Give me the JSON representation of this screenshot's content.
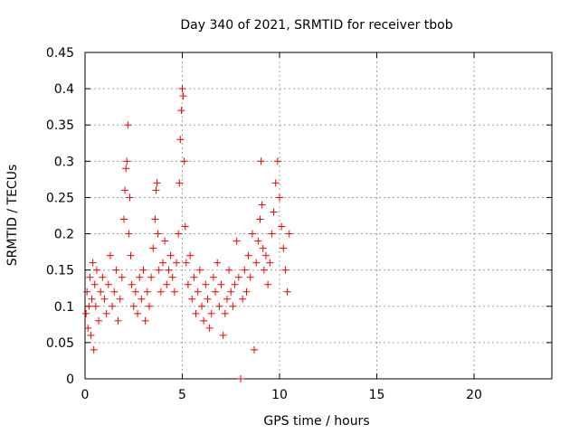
{
  "chart_data": {
    "type": "scatter",
    "title": "Day 340 of 2021, SRMTID for receiver tbob",
    "xlabel": "GPS time / hours",
    "ylabel": "SRMTID / TECUs",
    "xlim": [
      0,
      24
    ],
    "ylim": [
      0,
      0.45
    ],
    "xticks": [
      0,
      5,
      10,
      15,
      20
    ],
    "xtick_labels": [
      "0",
      "5",
      "10",
      "15",
      "20"
    ],
    "yticks": [
      0,
      0.05,
      0.1,
      0.15,
      0.2,
      0.25,
      0.3,
      0.35,
      0.4,
      0.45
    ],
    "ytick_labels": [
      "0",
      "0.05",
      "0.1",
      "0.15",
      "0.2",
      "0.25",
      "0.3",
      "0.35",
      "0.4",
      "0.45"
    ],
    "grid": true,
    "marker": "+",
    "color": "#ee0000",
    "series": [
      {
        "name": "SRMTID",
        "x": [
          0.05,
          0.1,
          0.15,
          0.2,
          0.25,
          0.3,
          0.35,
          0.4,
          0.45,
          0.5,
          0.55,
          0.6,
          0.7,
          0.8,
          0.9,
          1.0,
          1.1,
          1.2,
          1.3,
          1.4,
          1.5,
          1.6,
          1.7,
          1.8,
          1.9,
          2.0,
          2.05,
          2.1,
          2.15,
          2.2,
          2.25,
          2.3,
          2.35,
          2.4,
          2.5,
          2.6,
          2.7,
          2.8,
          2.9,
          3.0,
          3.1,
          3.2,
          3.3,
          3.4,
          3.5,
          3.6,
          3.65,
          3.7,
          3.75,
          3.8,
          3.9,
          4.0,
          4.1,
          4.2,
          4.3,
          4.4,
          4.5,
          4.6,
          4.7,
          4.8,
          4.85,
          4.9,
          4.95,
          5.0,
          5.05,
          5.1,
          5.15,
          5.2,
          5.3,
          5.4,
          5.5,
          5.6,
          5.7,
          5.8,
          5.9,
          6.0,
          6.1,
          6.2,
          6.3,
          6.4,
          6.5,
          6.6,
          6.7,
          6.8,
          6.9,
          7.0,
          7.1,
          7.2,
          7.3,
          7.4,
          7.5,
          7.6,
          7.7,
          7.8,
          7.9,
          8.0,
          8.1,
          8.2,
          8.3,
          8.4,
          8.5,
          8.6,
          8.7,
          8.8,
          8.9,
          9.0,
          9.05,
          9.1,
          9.15,
          9.2,
          9.3,
          9.4,
          9.5,
          9.6,
          9.7,
          9.8,
          9.9,
          10.0,
          10.1,
          10.2,
          10.3,
          10.4,
          10.5
        ],
        "y": [
          0.09,
          0.12,
          0.07,
          0.1,
          0.14,
          0.06,
          0.11,
          0.16,
          0.04,
          0.13,
          0.1,
          0.15,
          0.08,
          0.12,
          0.14,
          0.11,
          0.09,
          0.13,
          0.17,
          0.1,
          0.12,
          0.15,
          0.08,
          0.11,
          0.14,
          0.22,
          0.26,
          0.29,
          0.3,
          0.35,
          0.2,
          0.25,
          0.17,
          0.13,
          0.1,
          0.12,
          0.09,
          0.14,
          0.11,
          0.15,
          0.08,
          0.12,
          0.1,
          0.14,
          0.18,
          0.22,
          0.26,
          0.27,
          0.2,
          0.15,
          0.12,
          0.16,
          0.19,
          0.13,
          0.15,
          0.17,
          0.14,
          0.12,
          0.16,
          0.2,
          0.27,
          0.33,
          0.37,
          0.4,
          0.39,
          0.3,
          0.21,
          0.16,
          0.13,
          0.17,
          0.11,
          0.14,
          0.09,
          0.12,
          0.15,
          0.1,
          0.08,
          0.13,
          0.11,
          0.07,
          0.09,
          0.14,
          0.12,
          0.16,
          0.1,
          0.13,
          0.06,
          0.09,
          0.11,
          0.15,
          0.12,
          0.1,
          0.13,
          0.19,
          0.14,
          0.0,
          0.11,
          0.15,
          0.12,
          0.17,
          0.14,
          0.2,
          0.04,
          0.16,
          0.19,
          0.22,
          0.3,
          0.24,
          0.18,
          0.15,
          0.17,
          0.13,
          0.16,
          0.2,
          0.23,
          0.27,
          0.3,
          0.25,
          0.21,
          0.18,
          0.15,
          0.12,
          0.2
        ]
      }
    ]
  }
}
